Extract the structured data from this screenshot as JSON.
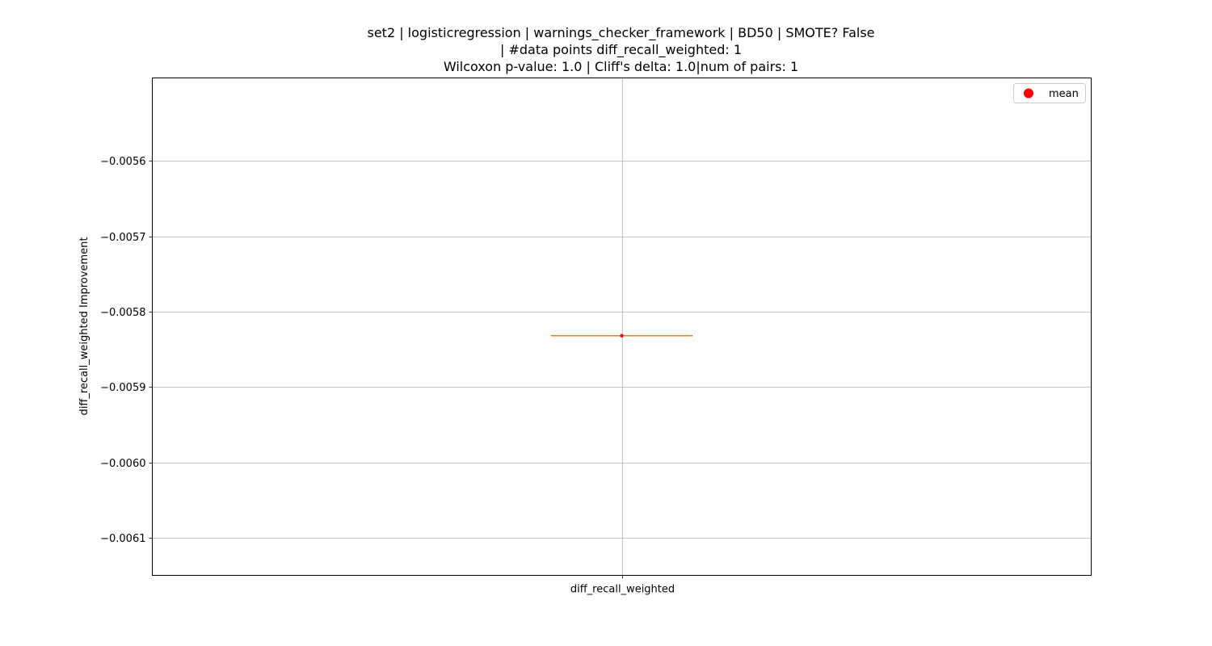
{
  "chart_data": {
    "type": "box",
    "title_lines": [
      "set2 | logisticregression | warnings_checker_framework | BD50 | SMOTE? False",
      "| #data points diff_recall_weighted: 1",
      "Wilcoxon p-value: 1.0 | Cliff's delta: 1.0|num of pairs: 1"
    ],
    "categories": [
      "diff_recall_weighted"
    ],
    "ylabel": "diff_recall_weighted Improvement",
    "xlabel": "",
    "ylim": [
      -0.00615,
      -0.00549
    ],
    "yticks": [
      -0.0061,
      -0.006,
      -0.0059,
      -0.0058,
      -0.0057,
      -0.0056
    ],
    "ytick_labels": [
      "−0.0061",
      "−0.0060",
      "−0.0059",
      "−0.0058",
      "−0.0057",
      "−0.0056"
    ],
    "boxes": [
      {
        "category": "diff_recall_weighted",
        "min": -0.005832,
        "q1": -0.005832,
        "median": -0.005832,
        "q3": -0.005832,
        "max": -0.005832,
        "mean": -0.005832
      }
    ],
    "legend": {
      "entries": [
        {
          "label": "mean",
          "color": "#ff0000",
          "marker": "circle"
        }
      ],
      "position": "upper right"
    },
    "grid": true,
    "colors": {
      "median": "#ff7f0e",
      "mean": "#ff0000",
      "box": "#000000",
      "grid": "#b0b0b0"
    }
  }
}
